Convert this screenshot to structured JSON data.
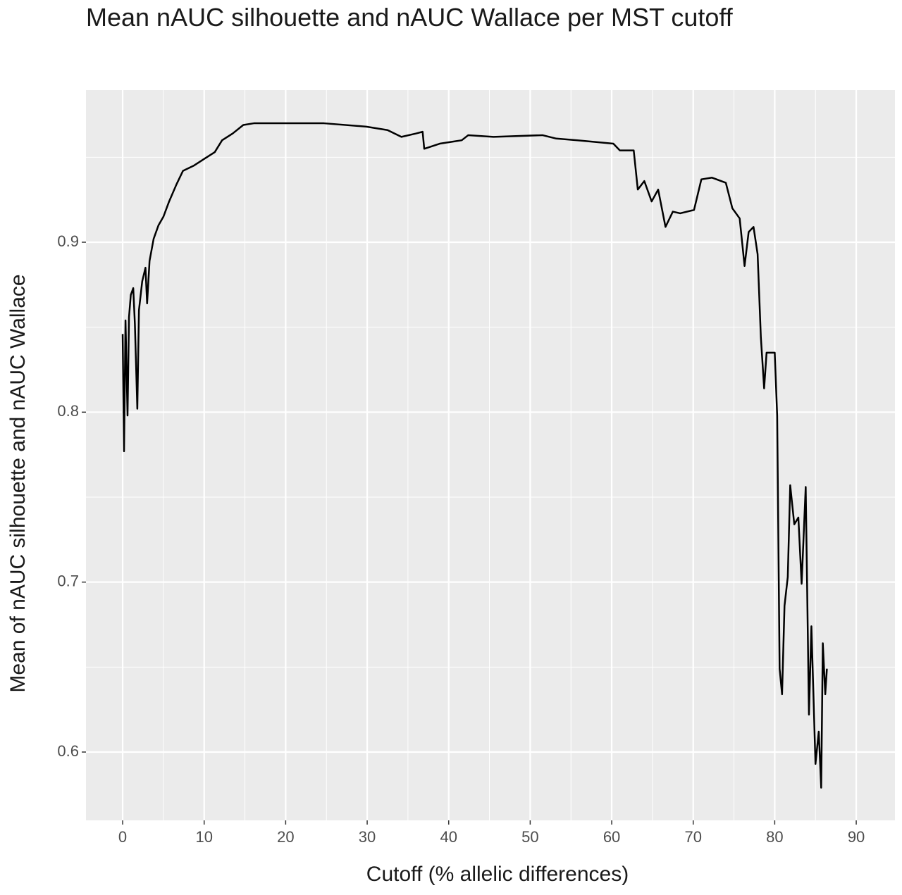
{
  "chart_data": {
    "type": "line",
    "title": "Mean nAUC silhouette and nAUC Wallace per MST cutoff",
    "x_label": "Cutoff (% allelic differences)",
    "y_label": "Mean of nAUC silhouette and nAUC Wallace",
    "xlim": [
      -4.5,
      94.75
    ],
    "ylim": [
      0.5598,
      0.9895
    ],
    "xticks": [
      0,
      10,
      20,
      30,
      40,
      50,
      60,
      70,
      80,
      90
    ],
    "yticks": [
      0.6,
      0.7,
      0.8,
      0.9
    ],
    "grid": true,
    "series": [
      {
        "color": "#000000",
        "x": [
          0,
          0.17,
          0.35,
          0.6,
          0.78,
          1.0,
          1.3,
          1.5,
          1.8,
          2.0,
          2.4,
          2.8,
          3.0,
          3.3,
          3.8,
          4.4,
          5.0,
          5.7,
          6.6,
          7.4,
          8.7,
          10,
          11.3,
          12.2,
          13.5,
          14.8,
          16.1,
          19.5,
          24.7,
          29.9,
          32.5,
          34.2,
          36,
          36.8,
          37,
          38.9,
          41.6,
          42.4,
          45.5,
          51.5,
          53.2,
          55.8,
          60.2,
          61,
          62.7,
          63.2,
          64,
          64.9,
          65.7,
          66.6,
          67.5,
          68.4,
          70.1,
          71,
          72.3,
          74,
          74.8,
          75.7,
          76.3,
          76.8,
          77.4,
          77.9,
          78.3,
          78.7,
          79,
          80,
          80.3,
          80.6,
          80.9,
          81.2,
          81.6,
          81.9,
          82.4,
          82.9,
          83.3,
          83.8,
          84.2,
          84.5,
          85,
          85.4,
          85.7,
          85.9,
          86.2,
          86.4
        ],
        "values": [
          0.846,
          0.777,
          0.854,
          0.798,
          0.856,
          0.869,
          0.873,
          0.852,
          0.802,
          0.86,
          0.877,
          0.885,
          0.864,
          0.889,
          0.902,
          0.91,
          0.915,
          0.924,
          0.934,
          0.942,
          0.945,
          0.949,
          0.953,
          0.96,
          0.964,
          0.969,
          0.97,
          0.97,
          0.97,
          0.968,
          0.966,
          0.962,
          0.964,
          0.965,
          0.955,
          0.958,
          0.96,
          0.963,
          0.962,
          0.963,
          0.961,
          0.96,
          0.958,
          0.954,
          0.954,
          0.931,
          0.936,
          0.924,
          0.931,
          0.909,
          0.918,
          0.917,
          0.919,
          0.937,
          0.938,
          0.935,
          0.92,
          0.914,
          0.886,
          0.906,
          0.909,
          0.893,
          0.844,
          0.814,
          0.835,
          0.835,
          0.798,
          0.649,
          0.634,
          0.686,
          0.703,
          0.757,
          0.734,
          0.738,
          0.699,
          0.756,
          0.622,
          0.674,
          0.593,
          0.612,
          0.579,
          0.664,
          0.634,
          0.649
        ]
      }
    ]
  }
}
